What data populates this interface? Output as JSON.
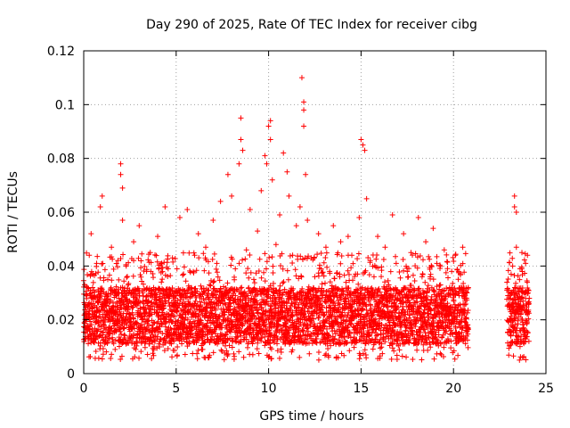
{
  "chart_data": {
    "type": "scatter",
    "title": "Day 290 of 2025, Rate Of TEC Index for receiver cibg",
    "xlabel": "GPS time / hours",
    "ylabel": "ROTI / TECUs",
    "xlim": [
      0,
      25
    ],
    "ylim": [
      0,
      0.12
    ],
    "xticks": [
      "0",
      "5",
      "10",
      "15",
      "20",
      "25"
    ],
    "yticks": [
      "0",
      "0.02",
      "0.04",
      "0.06",
      "0.08",
      "0.1",
      "0.12"
    ],
    "grid": true,
    "marker": "+",
    "color": "#ff0000",
    "series": [
      {
        "points": [
          [
            0.1,
            0.015
          ],
          [
            0.2,
            0.032
          ],
          [
            0.3,
            0.044
          ],
          [
            0.4,
            0.052
          ],
          [
            0.5,
            0.012
          ],
          [
            0.7,
            0.041
          ],
          [
            0.8,
            0.027
          ],
          [
            0.9,
            0.062
          ],
          [
            1.0,
            0.066
          ],
          [
            1.1,
            0.018
          ],
          [
            1.3,
            0.035
          ],
          [
            1.5,
            0.047
          ],
          [
            1.7,
            0.009
          ],
          [
            1.9,
            0.028
          ],
          [
            2.0,
            0.078
          ],
          [
            2.0,
            0.074
          ],
          [
            2.1,
            0.069
          ],
          [
            2.1,
            0.057
          ],
          [
            2.3,
            0.04
          ],
          [
            2.5,
            0.022
          ],
          [
            2.7,
            0.049
          ],
          [
            2.9,
            0.031
          ],
          [
            3.0,
            0.055
          ],
          [
            3.2,
            0.012
          ],
          [
            3.4,
            0.038
          ],
          [
            3.6,
            0.045
          ],
          [
            3.8,
            0.026
          ],
          [
            4.0,
            0.051
          ],
          [
            4.2,
            0.034
          ],
          [
            4.4,
            0.062
          ],
          [
            4.6,
            0.017
          ],
          [
            4.8,
            0.043
          ],
          [
            5.0,
            0.029
          ],
          [
            5.2,
            0.058
          ],
          [
            5.4,
            0.037
          ],
          [
            5.6,
            0.061
          ],
          [
            5.8,
            0.015
          ],
          [
            6.0,
            0.044
          ],
          [
            6.2,
            0.052
          ],
          [
            6.4,
            0.024
          ],
          [
            6.6,
            0.047
          ],
          [
            6.8,
            0.033
          ],
          [
            7.0,
            0.057
          ],
          [
            7.2,
            0.041
          ],
          [
            7.4,
            0.064
          ],
          [
            7.6,
            0.028
          ],
          [
            7.8,
            0.074
          ],
          [
            8.0,
            0.066
          ],
          [
            8.2,
            0.039
          ],
          [
            8.4,
            0.078
          ],
          [
            8.5,
            0.095
          ],
          [
            8.5,
            0.087
          ],
          [
            8.6,
            0.083
          ],
          [
            8.8,
            0.046
          ],
          [
            9.0,
            0.061
          ],
          [
            9.2,
            0.035
          ],
          [
            9.4,
            0.053
          ],
          [
            9.6,
            0.068
          ],
          [
            9.8,
            0.081
          ],
          [
            9.9,
            0.078
          ],
          [
            10.0,
            0.092
          ],
          [
            10.1,
            0.094
          ],
          [
            10.1,
            0.087
          ],
          [
            10.2,
            0.072
          ],
          [
            10.4,
            0.048
          ],
          [
            10.6,
            0.059
          ],
          [
            10.8,
            0.082
          ],
          [
            11.0,
            0.075
          ],
          [
            11.1,
            0.066
          ],
          [
            11.3,
            0.044
          ],
          [
            11.5,
            0.055
          ],
          [
            11.7,
            0.062
          ],
          [
            11.8,
            0.11
          ],
          [
            11.9,
            0.101
          ],
          [
            11.9,
            0.098
          ],
          [
            11.9,
            0.092
          ],
          [
            12.0,
            0.074
          ],
          [
            12.1,
            0.057
          ],
          [
            12.3,
            0.043
          ],
          [
            12.5,
            0.036
          ],
          [
            12.7,
            0.052
          ],
          [
            12.9,
            0.029
          ],
          [
            13.1,
            0.047
          ],
          [
            13.3,
            0.038
          ],
          [
            13.5,
            0.055
          ],
          [
            13.7,
            0.031
          ],
          [
            13.9,
            0.049
          ],
          [
            14.1,
            0.024
          ],
          [
            14.3,
            0.051
          ],
          [
            14.5,
            0.044
          ],
          [
            14.7,
            0.037
          ],
          [
            14.9,
            0.058
          ],
          [
            15.0,
            0.087
          ],
          [
            15.1,
            0.085
          ],
          [
            15.2,
            0.083
          ],
          [
            15.3,
            0.065
          ],
          [
            15.5,
            0.042
          ],
          [
            15.7,
            0.036
          ],
          [
            15.9,
            0.051
          ],
          [
            16.1,
            0.029
          ],
          [
            16.3,
            0.047
          ],
          [
            16.5,
            0.033
          ],
          [
            16.7,
            0.059
          ],
          [
            16.9,
            0.041
          ],
          [
            17.1,
            0.027
          ],
          [
            17.3,
            0.052
          ],
          [
            17.5,
            0.038
          ],
          [
            17.7,
            0.045
          ],
          [
            17.9,
            0.031
          ],
          [
            18.1,
            0.058
          ],
          [
            18.3,
            0.036
          ],
          [
            18.5,
            0.049
          ],
          [
            18.7,
            0.024
          ],
          [
            18.9,
            0.054
          ],
          [
            19.1,
            0.041
          ],
          [
            19.3,
            0.033
          ],
          [
            19.5,
            0.046
          ],
          [
            19.7,
            0.022
          ],
          [
            19.9,
            0.038
          ],
          [
            20.1,
            0.044
          ],
          [
            20.3,
            0.029
          ],
          [
            20.5,
            0.047
          ],
          [
            20.7,
            0.018
          ],
          [
            20.8,
            0.032
          ],
          [
            23.0,
            0.025
          ],
          [
            23.1,
            0.014
          ],
          [
            23.2,
            0.04
          ],
          [
            23.3,
            0.062
          ],
          [
            23.3,
            0.066
          ],
          [
            23.4,
            0.06
          ],
          [
            23.4,
            0.047
          ],
          [
            23.5,
            0.021
          ],
          [
            23.6,
            0.039
          ],
          [
            23.7,
            0.045
          ],
          [
            23.8,
            0.017
          ],
          [
            23.9,
            0.041
          ],
          [
            24.0,
            0.044
          ],
          [
            24.1,
            0.028
          ]
        ],
        "band": {
          "description_range_x": [
            0,
            20.8
          ],
          "second_range_x": [
            22.9,
            24.1
          ],
          "typical_low": 0.005,
          "typical_high": 0.045,
          "dense_low": 0.011,
          "dense_high": 0.032
        }
      }
    ]
  }
}
